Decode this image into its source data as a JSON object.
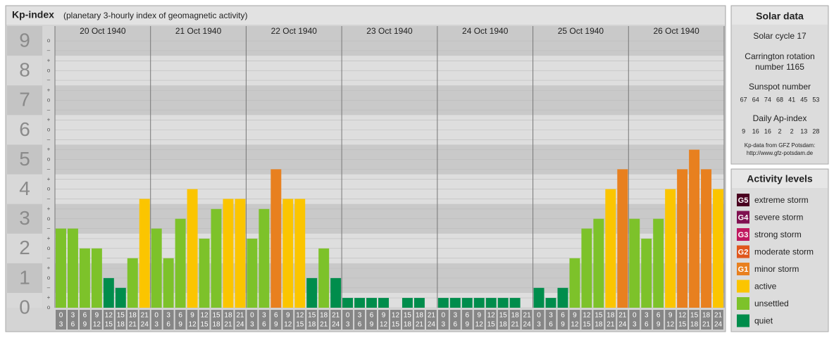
{
  "chart_data": {
    "type": "bar",
    "title": "Kp-index",
    "subtitle": "(planetary 3-hourly index of geomagnetic activity)",
    "days": [
      "20 Oct 1940",
      "21 Oct 1940",
      "22 Oct 1940",
      "23 Oct 1940",
      "24 Oct 1940",
      "25 Oct 1940",
      "26 Oct 1940"
    ],
    "hours_from": [
      0,
      3,
      6,
      9,
      12,
      15,
      18,
      21
    ],
    "hours_to": [
      3,
      6,
      9,
      12,
      15,
      18,
      21,
      24
    ],
    "values": [
      2.67,
      2.67,
      2,
      2,
      1,
      0.67,
      1.67,
      3.67,
      2.67,
      1.67,
      3,
      4,
      2.33,
      3.33,
      3.67,
      3.67,
      2.33,
      3.33,
      4.67,
      3.67,
      3.67,
      1,
      2,
      1,
      0.33,
      0.33,
      0.33,
      0.33,
      0,
      0.33,
      0.33,
      0,
      0.33,
      0.33,
      0.33,
      0.33,
      0.33,
      0.33,
      0.33,
      0,
      0.67,
      0.33,
      0.67,
      1.67,
      2.67,
      3,
      4,
      4.67,
      3,
      2.33,
      3,
      4,
      4.67,
      5.33,
      4.67,
      4
    ],
    "colors": [
      "#7dc22a",
      "#7dc22a",
      "#7dc22a",
      "#7dc22a",
      "#008d4c",
      "#008d4c",
      "#7dc22a",
      "#fbc500",
      "#7dc22a",
      "#7dc22a",
      "#7dc22a",
      "#fbc500",
      "#7dc22a",
      "#7dc22a",
      "#fbc500",
      "#fbc500",
      "#7dc22a",
      "#7dc22a",
      "#e8801f",
      "#fbc500",
      "#fbc500",
      "#008d4c",
      "#7dc22a",
      "#008d4c",
      "#008d4c",
      "#008d4c",
      "#008d4c",
      "#008d4c",
      "#008d4c",
      "#008d4c",
      "#008d4c",
      "#008d4c",
      "#008d4c",
      "#008d4c",
      "#008d4c",
      "#008d4c",
      "#008d4c",
      "#008d4c",
      "#008d4c",
      "#008d4c",
      "#008d4c",
      "#008d4c",
      "#008d4c",
      "#7dc22a",
      "#7dc22a",
      "#7dc22a",
      "#fbc500",
      "#e8801f",
      "#7dc22a",
      "#7dc22a",
      "#7dc22a",
      "#fbc500",
      "#e8801f",
      "#e8801f",
      "#e8801f",
      "#fbc500"
    ],
    "ylim": [
      0,
      9.5
    ],
    "yticks": [
      0,
      1,
      2,
      3,
      4,
      5,
      6,
      7,
      8,
      9
    ],
    "minor_ticks": [
      {
        "value": 9,
        "label": "o"
      },
      {
        "value": 8.67,
        "label": "–"
      },
      {
        "value": 8.33,
        "label": "+"
      },
      {
        "value": 8,
        "label": "o"
      },
      {
        "value": 7.67,
        "label": "–"
      },
      {
        "value": 7.33,
        "label": "+"
      },
      {
        "value": 7,
        "label": "o"
      },
      {
        "value": 6.67,
        "label": "–"
      },
      {
        "value": 6.33,
        "label": "+"
      },
      {
        "value": 6,
        "label": "o"
      },
      {
        "value": 5.67,
        "label": "–"
      },
      {
        "value": 5.33,
        "label": "+"
      },
      {
        "value": 5,
        "label": "o"
      },
      {
        "value": 4.67,
        "label": "–"
      },
      {
        "value": 4.33,
        "label": "+"
      },
      {
        "value": 4,
        "label": "o"
      },
      {
        "value": 3.67,
        "label": "–"
      },
      {
        "value": 3.33,
        "label": "+"
      },
      {
        "value": 3,
        "label": "o"
      },
      {
        "value": 2.67,
        "label": "–"
      },
      {
        "value": 2.33,
        "label": "+"
      },
      {
        "value": 2,
        "label": "o"
      },
      {
        "value": 1.67,
        "label": "–"
      },
      {
        "value": 1.33,
        "label": "+"
      },
      {
        "value": 1,
        "label": "o"
      },
      {
        "value": 0.67,
        "label": "–"
      },
      {
        "value": 0.33,
        "label": "+"
      },
      {
        "value": 0,
        "label": "o"
      }
    ],
    "grid": true
  },
  "solar_data": {
    "title": "Solar data",
    "cycle": "Solar cycle 17",
    "carrington": [
      "Carrington rotation",
      "number 1165"
    ],
    "sunspot_title": "Sunspot number",
    "sunspot": [
      67,
      64,
      74,
      68,
      41,
      45,
      53
    ],
    "ap_title": "Daily Ap-index",
    "ap": [
      9,
      16,
      16,
      2,
      2,
      13,
      28
    ],
    "source": [
      "Kp-data from GFZ Potsdam:",
      "http://www.gfz-potsdam.de"
    ]
  },
  "activity_levels": {
    "title": "Activity levels",
    "items": [
      {
        "code": "G5",
        "name": "extreme storm",
        "color": "#4a0020"
      },
      {
        "code": "G4",
        "name": "severe storm",
        "color": "#801050"
      },
      {
        "code": "G3",
        "name": "strong storm",
        "color": "#c0185f"
      },
      {
        "code": "G2",
        "name": "moderate storm",
        "color": "#e0561c"
      },
      {
        "code": "G1",
        "name": "minor storm",
        "color": "#e8801f"
      },
      {
        "name": "active",
        "color": "#fbc500"
      },
      {
        "name": "unsettled",
        "color": "#7dc22a"
      },
      {
        "name": "quiet",
        "color": "#008d4c"
      }
    ]
  }
}
